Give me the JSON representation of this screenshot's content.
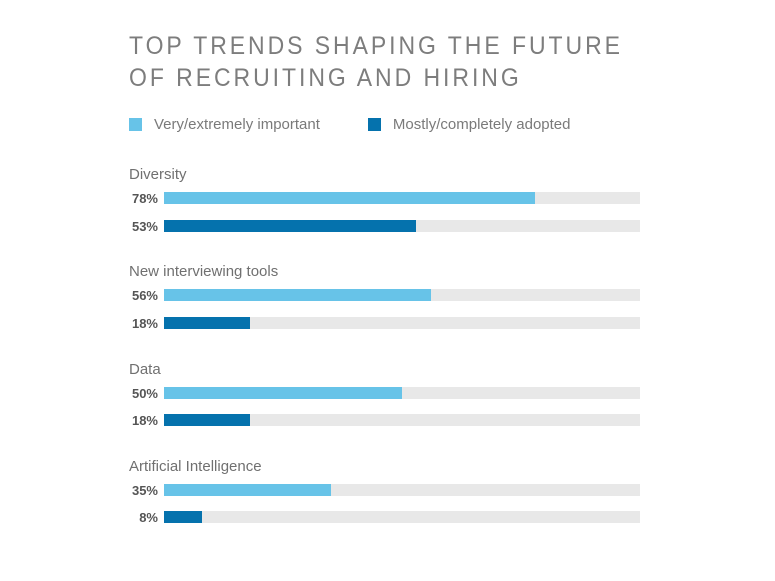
{
  "chart_data": {
    "type": "bar",
    "orientation": "horizontal",
    "title_lines": [
      "TOP TRENDS SHAPING THE FUTURE",
      "OF RECRUITING AND HIRING"
    ],
    "categories": [
      "Diversity",
      "New interviewing tools",
      "Data",
      "Artificial Intelligence"
    ],
    "series": [
      {
        "name": "Very/extremely important",
        "color": "#67c3e8",
        "values": [
          78,
          56,
          50,
          35
        ]
      },
      {
        "name": "Mostly/completely adopted",
        "color": "#0572ad",
        "values": [
          53,
          18,
          18,
          8
        ]
      }
    ],
    "value_labels": [
      [
        "78%",
        "53%"
      ],
      [
        "56%",
        "18%"
      ],
      [
        "50%",
        "18%"
      ],
      [
        "35%",
        "8%"
      ]
    ],
    "xlim": [
      0,
      100
    ],
    "track_color": "#e8e8e8",
    "legend_position": "top-left",
    "grid": false
  }
}
